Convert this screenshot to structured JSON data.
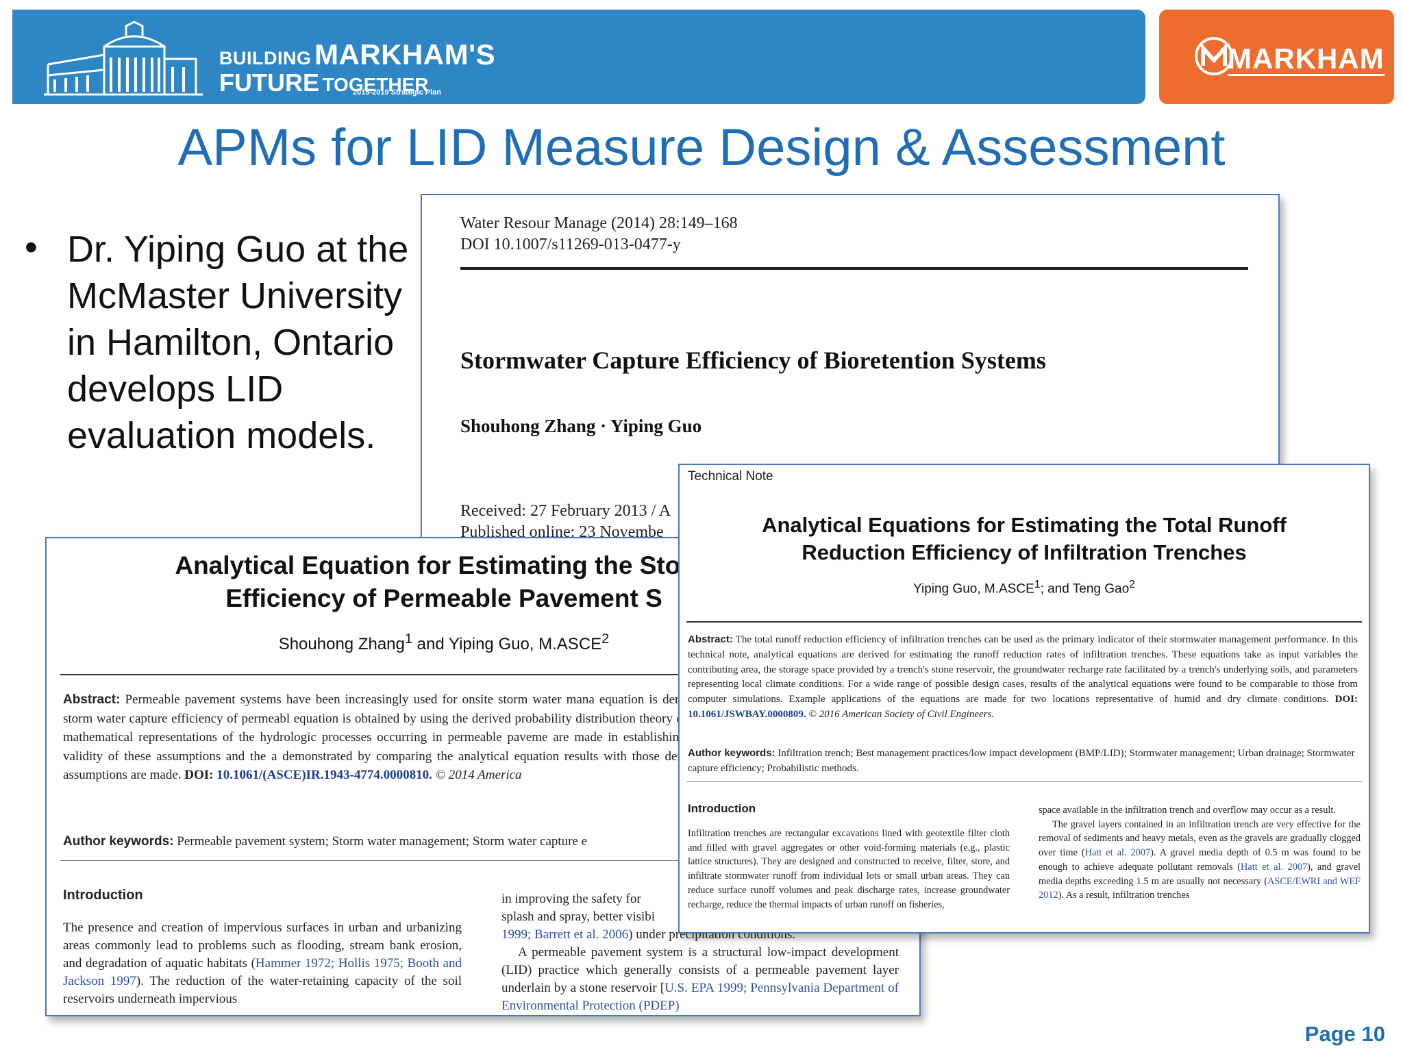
{
  "header": {
    "brand_line1_small": "BUILDING",
    "brand_line1_big": "MARKHAM'S",
    "brand_line2_big": "FUTURE",
    "brand_line2_small": "TOGETHER",
    "brand_sub": "2015-2019 Strategic Plan",
    "city_logo": "MARKHAM",
    "left_color": "#2f86c5",
    "right_color": "#ee6d2e"
  },
  "title": "APMs for LID Measure Design & Assessment",
  "bullet": "Dr. Yiping Guo at the McMaster University in Hamilton, Ontario develops LID evaluation models.",
  "paper1": {
    "meta1": "Water Resour Manage (2014) 28:149–168",
    "meta2": "DOI 10.1007/s11269-013-0477-y",
    "title": "Stormwater Capture Efficiency of Bioretention Systems",
    "authors": "Shouhong Zhang · Yiping Guo",
    "received": "Received: 27 February 2013 / A",
    "published": "Published online: 23 Novembe"
  },
  "paper2": {
    "title1": "Analytical Equation for Estimating the Storm",
    "title2": "Efficiency of Permeable Pavement S",
    "author1": "Shouhong Zhang",
    "sup1": "1",
    "author_mid": " and Yiping Guo, M.ASCE",
    "sup2": "2",
    "abstract_label": "Abstract:",
    "abstract_text": "Permeable pavement systems have been increasingly used for onsite storm water mana equation is derived for calculating the long-term average storm water capture efficiency of permeabl equation is obtained by using the derived probability distribution theory on the basis of the probabilist istics and the mathematical representations of the hydrologic processes occurring in permeable paveme are made in establishing these mathematical representations. The validity of these assumptions and the a demonstrated by comparing the analytical equation results with those determined from a series of con simplifying assumptions are made.",
    "doi_label": "DOI:",
    "doi": "10.1061/(ASCE)IR.1943-4774.0000810.",
    "copyright": "© 2014 America",
    "kw_label": "Author keywords:",
    "kw_text": "Permeable pavement system; Storm water management; Storm water capture e",
    "intro": "Introduction",
    "col1_text": "The presence and creation of impervious surfaces in urban and urbanizing areas commonly lead to problems such as flooding, stream bank erosion, and degradation of aquatic habitats (",
    "col1_ref": "Hammer 1972; Hollis 1975; Booth and Jackson 1997",
    "col1_text2": "). The reduction of the water-retaining capacity of the soil reservoirs underneath impervious",
    "col2_a": "in improving the safety for",
    "col2_b": "splash and spray, better visibi",
    "col2_c_ref": "1999; Barrett et al. 2006",
    "col2_c": ") under precipitation conditions.",
    "col2_d": "A permeable pavement system is a structural low-impact development (LID) practice which generally consists of a permeable pavement layer underlain by a stone reservoir [",
    "col2_d_ref": "U.S. EPA 1999; Pennsylvania Department of Environmental Protection (PDEP)"
  },
  "paper3": {
    "tech_note": "Technical Note",
    "title1": "Analytical Equations for Estimating the Total Runoff",
    "title2": "Reduction Efficiency of Infiltration Trenches",
    "author1": "Yiping Guo, M.ASCE",
    "sup1": "1",
    "author_mid": "; and Teng Gao",
    "sup2": "2",
    "abstract_label": "Abstract:",
    "abstract_text": "The total runoff reduction efficiency of infiltration trenches can be used as the primary indicator of their stormwater management performance. In this technical note, analytical equations are derived for estimating the runoff reduction rates of infiltration trenches. These equations take as input variables the contributing area, the storage space provided by a trench's stone reservoir, the groundwater recharge rate facilitated by a trench's underlying soils, and parameters representing local climate conditions. For a wide range of possible design cases, results of the analytical equations were found to be comparable to those from computer simulations. Example applications of the equations are made for two locations representative of humid and dry climate conditions.",
    "doi_label": "DOI:",
    "doi": "10.1061/JSWBAY.0000809.",
    "copyright": "© 2016 American Society of Civil Engineers.",
    "kw_label": "Author keywords:",
    "kw_text": "Infiltration trench; Best management practices/low impact development (BMP/LID); Stormwater management; Urban drainage; Stormwater capture efficiency; Probabilistic methods.",
    "intro": "Introduction",
    "col1_text": "Infiltration trenches are rectangular excavations lined with geotextile filter cloth and filled with gravel aggregates or other void-forming materials (e.g., plastic lattice structures). They are designed and constructed to receive, filter, store, and infiltrate stormwater runoff from individual lots or small urban areas. They can reduce surface runoff volumes and peak discharge rates, increase groundwater recharge, reduce the thermal impacts of urban runoff on fisheries,",
    "col2_a": "space available in the infiltration trench and overflow may occur as a result.",
    "col2_b": "The gravel layers contained in an infiltration trench are very effective for the removal of sediments and heavy metals, even as the gravels are gradually clogged over time (",
    "col2_ref1": "Hatt et al. 2007",
    "col2_c": "). A gravel media depth of 0.5 m was found to be enough to achieve adequate pollutant removals (",
    "col2_ref2": "Hatt et al. 2007",
    "col2_d": "), and gravel media depths exceeding 1.5 m are usually not necessary (",
    "col2_ref3": "ASCE/EWRI and WEF 2012",
    "col2_e": "). As a result, infiltration trenches"
  },
  "page_number": "Page 10"
}
